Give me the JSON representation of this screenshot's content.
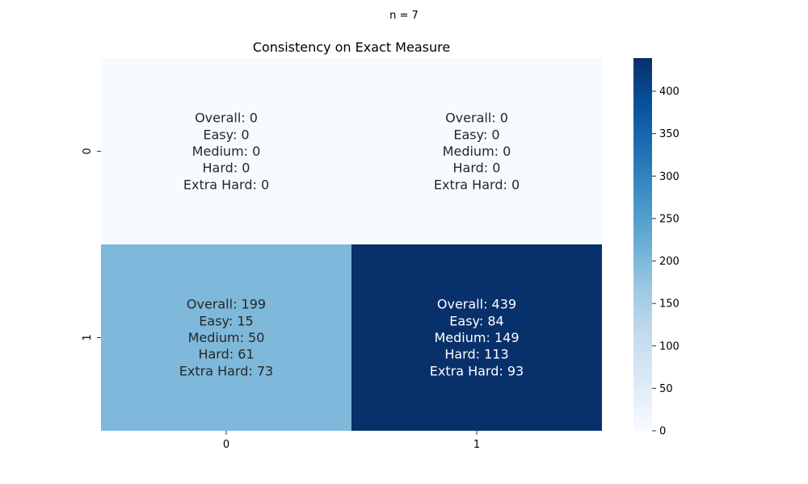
{
  "suptitle": "n = 7",
  "chart_data": {
    "type": "heatmap",
    "title": "Consistency on Exact Measure",
    "xlabel": "",
    "ylabel": "",
    "x_categories": [
      "0",
      "1"
    ],
    "y_categories": [
      "0",
      "1"
    ],
    "colormap": "Blues",
    "color_range": [
      0,
      439
    ],
    "colorbar_ticks": [
      0,
      50,
      100,
      150,
      200,
      250,
      300,
      350,
      400
    ],
    "cells": [
      {
        "row": 0,
        "col": 0,
        "value": 0,
        "lines": [
          "Overall: 0",
          "Easy: 0",
          "Medium: 0",
          "Hard: 0",
          "Extra Hard: 0"
        ]
      },
      {
        "row": 0,
        "col": 1,
        "value": 0,
        "lines": [
          "Overall: 0",
          "Easy: 0",
          "Medium: 0",
          "Hard: 0",
          "Extra Hard: 0"
        ]
      },
      {
        "row": 1,
        "col": 0,
        "value": 199,
        "lines": [
          "Overall: 199",
          "Easy: 15",
          "Medium: 50",
          "Hard: 61",
          "Extra Hard: 73"
        ]
      },
      {
        "row": 1,
        "col": 1,
        "value": 439,
        "lines": [
          "Overall: 439",
          "Easy: 84",
          "Medium: 149",
          "Hard: 113",
          "Extra Hard: 93"
        ]
      }
    ]
  }
}
